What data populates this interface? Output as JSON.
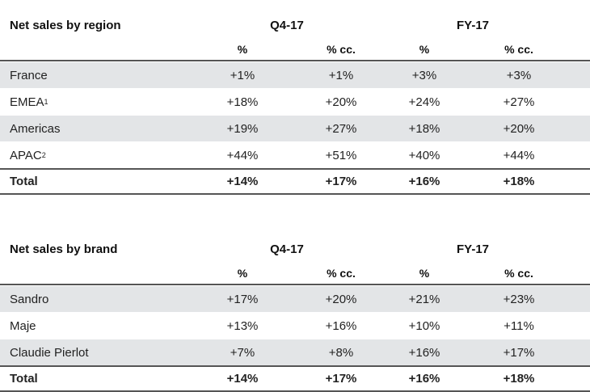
{
  "region_table": {
    "title": "Net sales by region",
    "groups": [
      "Q4-17",
      "FY-17"
    ],
    "subheaders": [
      "%",
      "% cc.",
      "%",
      "% cc."
    ],
    "rows": [
      {
        "label": "France",
        "sup": "",
        "values": [
          "+1%",
          "+1%",
          "+3%",
          "+3%"
        ]
      },
      {
        "label": "EMEA",
        "sup": "1",
        "values": [
          "+18%",
          "+20%",
          "+24%",
          "+27%"
        ]
      },
      {
        "label": "Americas",
        "sup": "",
        "values": [
          "+19%",
          "+27%",
          "+18%",
          "+20%"
        ]
      },
      {
        "label": "APAC",
        "sup": "2",
        "values": [
          "+44%",
          "+51%",
          "+40%",
          "+44%"
        ]
      }
    ],
    "total": {
      "label": "Total",
      "values": [
        "+14%",
        "+17%",
        "+16%",
        "+18%"
      ]
    }
  },
  "brand_table": {
    "title": "Net sales by brand",
    "groups": [
      "Q4-17",
      "FY-17"
    ],
    "subheaders": [
      "%",
      "% cc.",
      "%",
      "% cc."
    ],
    "rows": [
      {
        "label": "Sandro",
        "sup": "",
        "values": [
          "+17%",
          "+20%",
          "+21%",
          "+23%"
        ]
      },
      {
        "label": "Maje",
        "sup": "",
        "values": [
          "+13%",
          "+16%",
          "+10%",
          "+11%"
        ]
      },
      {
        "label": "Claudie Pierlot",
        "sup": "",
        "values": [
          "+7%",
          "+8%",
          "+16%",
          "+17%"
        ]
      }
    ],
    "total": {
      "label": "Total",
      "values": [
        "+14%",
        "+17%",
        "+16%",
        "+18%"
      ]
    }
  },
  "colors": {
    "row_shade": "#e3e5e7",
    "rule": "#555555"
  }
}
